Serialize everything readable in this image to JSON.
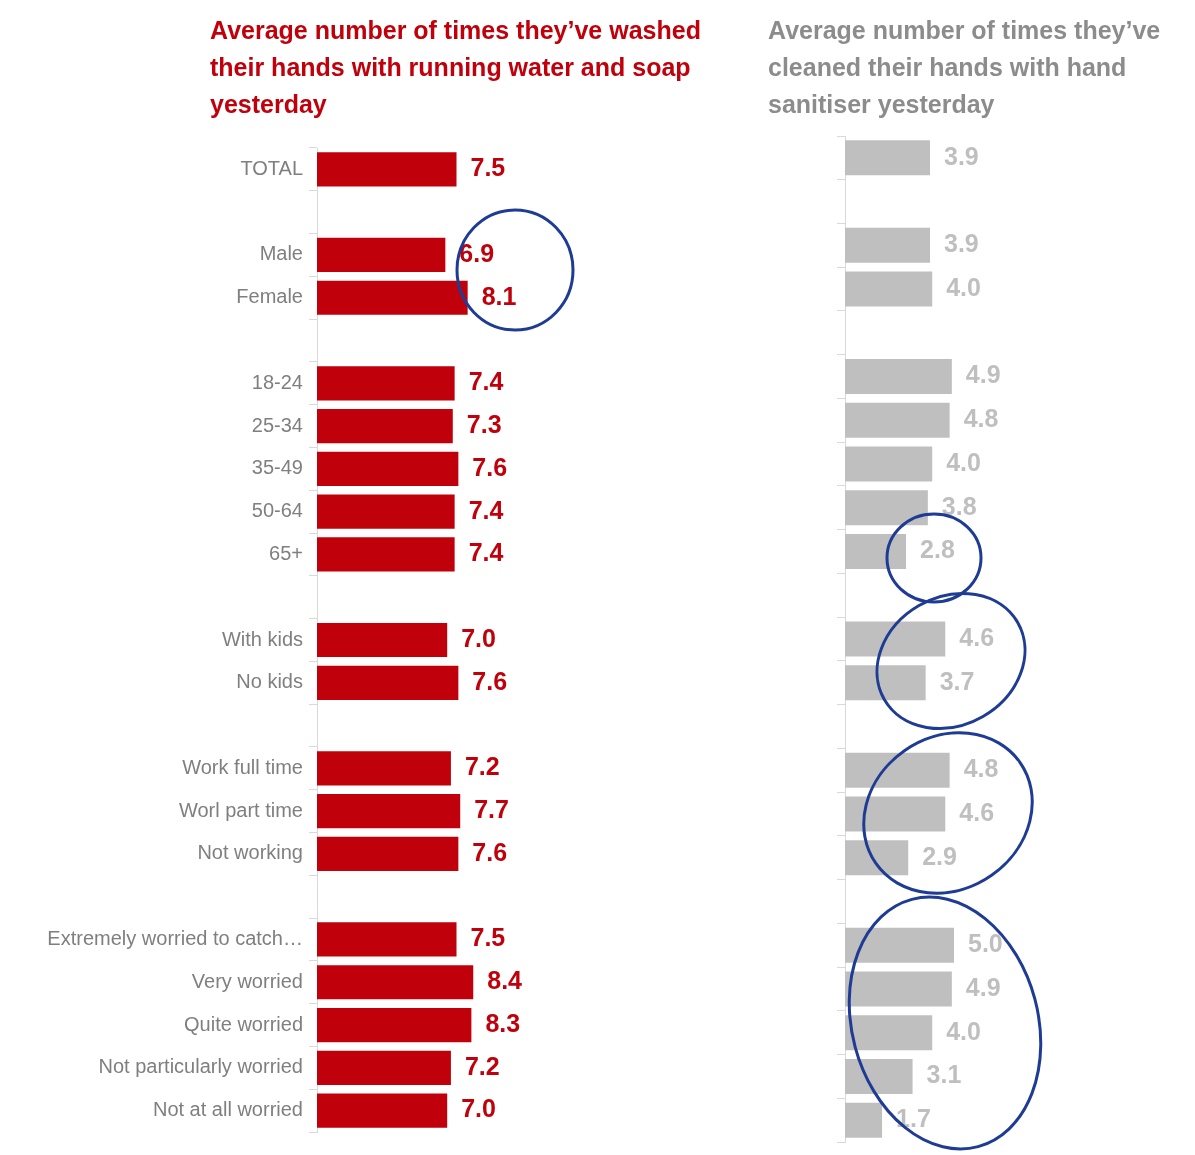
{
  "chart_data": [
    {
      "type": "bar",
      "orientation": "horizontal",
      "title": "Average number of times they’ve washed their hands with running water and soap yesterday",
      "categories": [
        "TOTAL",
        null,
        "Male",
        "Female",
        null,
        "18-24",
        "25-34",
        "35-49",
        "50-64",
        "65+",
        null,
        "With kids",
        "No kids",
        null,
        "Work full time",
        "Worl part time",
        "Not working",
        null,
        "Extremely worried to catch…",
        "Very worried",
        "Quite worried",
        "Not particularly worried",
        "Not at all worried"
      ],
      "series": [
        {
          "color": "#c0000b",
          "values": [
            7.5,
            null,
            6.9,
            8.1,
            null,
            7.4,
            7.3,
            7.6,
            7.4,
            7.4,
            null,
            7.0,
            7.6,
            null,
            7.2,
            7.7,
            7.6,
            null,
            7.5,
            8.4,
            8.3,
            7.2,
            7.0
          ],
          "value_labels": [
            "7.5",
            null,
            "6.9",
            "8.1",
            null,
            "7.4",
            "7.3",
            "7.6",
            "7.4",
            "7.4",
            null,
            "7.0",
            "7.6",
            null,
            "7.2",
            "7.7",
            "7.6",
            null,
            "7.5",
            "8.4",
            "8.3",
            "7.2",
            "7.0"
          ]
        }
      ],
      "grid": false,
      "legend": false,
      "tick_labels": "y"
    },
    {
      "type": "bar",
      "orientation": "horizontal",
      "title": "Average number of times they’ve cleaned their hands with hand sanitiser yesterday",
      "categories": [
        null,
        null,
        null,
        null,
        null,
        null,
        null,
        null,
        null,
        null,
        null,
        null,
        null,
        null,
        null,
        null,
        null,
        null,
        null,
        null,
        null,
        null,
        null
      ],
      "series": [
        {
          "color": "#bfbfbf",
          "values": [
            3.9,
            null,
            3.9,
            4.0,
            null,
            4.9,
            4.8,
            4.0,
            3.8,
            2.8,
            null,
            4.6,
            3.7,
            null,
            4.8,
            4.6,
            2.9,
            null,
            5.0,
            4.9,
            4.0,
            3.1,
            1.7
          ],
          "value_labels": [
            "3.9",
            null,
            "3.9",
            "4.0",
            null,
            "4.9",
            "4.8",
            "4.0",
            "3.8",
            "2.8",
            null,
            "4.6",
            "3.7",
            null,
            "4.8",
            "4.6",
            "2.9",
            null,
            "5.0",
            "4.9",
            "4.0",
            "3.1",
            "1.7"
          ]
        }
      ],
      "grid": false,
      "legend": false,
      "tick_labels": false
    }
  ]
}
